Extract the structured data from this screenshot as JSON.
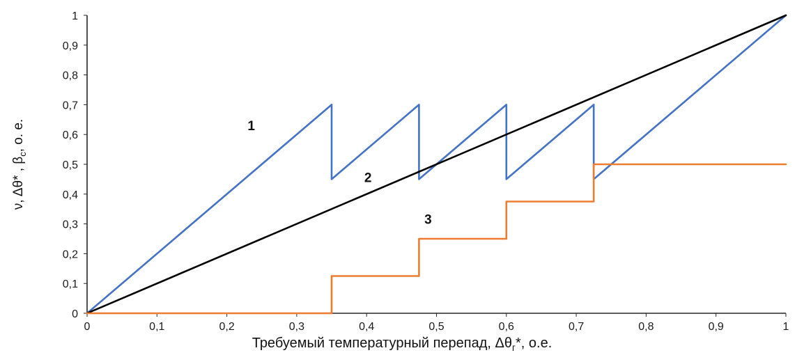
{
  "chart_data": {
    "type": "line",
    "title": "",
    "xlabel": "Требуемый температурный перепад,  Δθг*, о.е.",
    "ylabel": "ν, Δθ* , βс, о. е.",
    "xlim": [
      0,
      1
    ],
    "ylim": [
      0,
      1
    ],
    "grid": false,
    "legend": "none",
    "x_ticks": [
      "0",
      "0,1",
      "0,2",
      "0,3",
      "0,4",
      "0,5",
      "0,6",
      "0,7",
      "0,8",
      "0,9",
      "1"
    ],
    "y_ticks": [
      "0",
      "0,1",
      "0,2",
      "0,3",
      "0,4",
      "0,5",
      "0,6",
      "0,7",
      "0,8",
      "0,9",
      "1"
    ],
    "series": [
      {
        "name": "1",
        "label": "1",
        "color": "#4472C4",
        "shape": "sawtooth",
        "points": [
          [
            0,
            0
          ],
          [
            0.35,
            0.7
          ],
          [
            0.35,
            0.45
          ],
          [
            0.475,
            0.7
          ],
          [
            0.475,
            0.45
          ],
          [
            0.6,
            0.7
          ],
          [
            0.6,
            0.45
          ],
          [
            0.725,
            0.7
          ],
          [
            0.725,
            0.45
          ],
          [
            1,
            1
          ]
        ]
      },
      {
        "name": "2",
        "label": "2",
        "color": "#000000",
        "shape": "diagonal",
        "points": [
          [
            0,
            0
          ],
          [
            1,
            1
          ]
        ]
      },
      {
        "name": "3",
        "label": "3",
        "color": "#ED7D31",
        "shape": "step",
        "points": [
          [
            0,
            0
          ],
          [
            0.35,
            0
          ],
          [
            0.35,
            0.125
          ],
          [
            0.475,
            0.125
          ],
          [
            0.475,
            0.25
          ],
          [
            0.6,
            0.25
          ],
          [
            0.6,
            0.375
          ],
          [
            0.725,
            0.375
          ],
          [
            0.725,
            0.5
          ],
          [
            1,
            0.5
          ]
        ]
      }
    ],
    "annotations": [
      {
        "text": "1",
        "x": 0.235,
        "y": 0.615
      },
      {
        "text": "2",
        "x": 0.402,
        "y": 0.44
      },
      {
        "text": "3",
        "x": 0.488,
        "y": 0.3
      }
    ]
  },
  "axis": {
    "xlabel_pre": "Требуемый температурный перепад,  Δθ",
    "xlabel_sub": "г",
    "xlabel_post": "*, о.е.",
    "ylabel_pre": "ν, Δθ* , β",
    "ylabel_sub": "с",
    "ylabel_post": ", о. е."
  }
}
